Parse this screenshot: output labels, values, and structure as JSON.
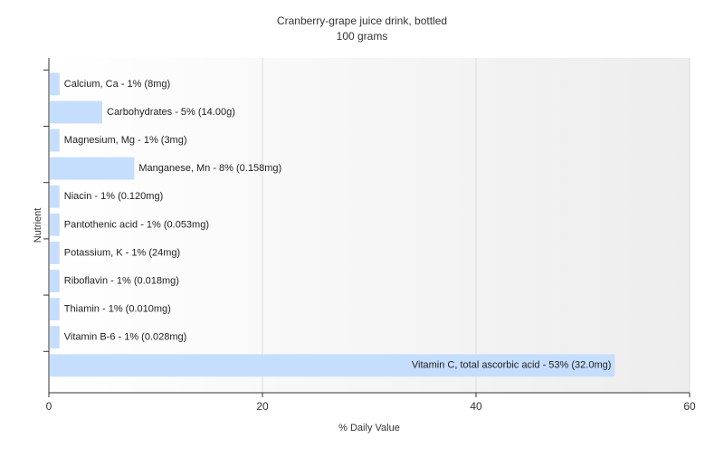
{
  "chart_data": {
    "type": "bar",
    "orientation": "horizontal",
    "title": "Cranberry-grape juice drink, bottled",
    "subtitle": "100 grams",
    "xlabel": "% Daily Value",
    "ylabel": "Nutrient",
    "xlim": [
      0,
      60
    ],
    "x_ticks": [
      "0",
      "20",
      "40",
      "60"
    ],
    "grid": true,
    "bar_color": "#c6defe",
    "categories": [
      "Calcium, Ca",
      "Carbohydrates",
      "Magnesium, Mg",
      "Manganese, Mn",
      "Niacin",
      "Pantothenic acid",
      "Potassium, K",
      "Riboflavin",
      "Thiamin",
      "Vitamin B-6",
      "Vitamin C, total ascorbic acid"
    ],
    "values": [
      1,
      5,
      1,
      8,
      1,
      1,
      1,
      1,
      1,
      1,
      53
    ],
    "labels": [
      "Calcium, Ca - 1% (8mg)",
      "Carbohydrates - 5% (14.00g)",
      "Magnesium, Mg - 1% (3mg)",
      "Manganese, Mn - 8% (0.158mg)",
      "Niacin - 1% (0.120mg)",
      "Pantothenic acid - 1% (0.053mg)",
      "Potassium, K - 1% (24mg)",
      "Riboflavin - 1% (0.018mg)",
      "Thiamin - 1% (0.010mg)",
      "Vitamin B-6 - 1% (0.028mg)",
      "Vitamin C, total ascorbic acid - 53% (32.0mg)"
    ]
  }
}
